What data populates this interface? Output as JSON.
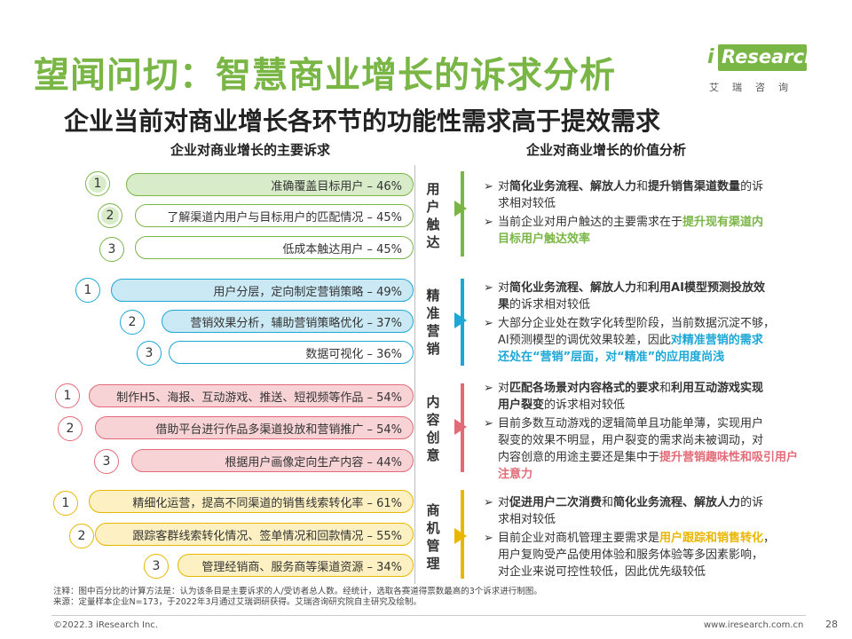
{
  "title": "望闻问切：智慧商业增长的诉求分析",
  "subtitle": "企业当前对商业增长各环节的功能性需求高于提效需求",
  "logo": {
    "text": "Research",
    "i": "i",
    "sub": "艾瑞咨询"
  },
  "left_header": "企业对商业增长的主要诉求",
  "right_header": "企业对商业增长的价值分析",
  "colors": {
    "green": "#7ab646",
    "blue": "#1ca7d6",
    "red": "#e26b77",
    "yellow": "#e9b600"
  },
  "groups": [
    {
      "category": "用户触达",
      "items": [
        {
          "num": "1",
          "label": "准确覆盖目标用户 – 46%"
        },
        {
          "num": "2",
          "label": "了解渠道内用户与目标用户的匹配情况 – 45%"
        },
        {
          "num": "3",
          "label": "低成本触达用户 – 45%"
        }
      ],
      "bullets": [
        {
          "marker": "➢",
          "line1": [
            "对",
            "简化业务流程、解放人力",
            "和",
            "提升销售渠道数量",
            "的诉"
          ],
          "cont": [
            "求相对较低"
          ]
        },
        {
          "marker": "➢",
          "line1": [
            "当前企业对用户触达的主要需求在于",
            "提升现有渠道内"
          ],
          "cont": [
            "目标用户触达效率"
          ]
        }
      ]
    },
    {
      "category": "精准营销",
      "items": [
        {
          "num": "1",
          "label": "用户分层，定向制定营销策略 – 49%"
        },
        {
          "num": "2",
          "label": "营销效果分析，辅助营销策略优化 – 37%"
        },
        {
          "num": "3",
          "label": "数据可视化 – 36%"
        }
      ],
      "bullets": [
        {
          "marker": "➢",
          "line1": [
            "对",
            "简化业务流程、解放人力",
            "和",
            "利用AI模型预测投放效"
          ],
          "cont": [
            "果",
            "的诉求相对较低"
          ]
        },
        {
          "marker": "➢",
          "line1": [
            "大部分企业处在数字化转型阶段，当前数据沉淀不够，"
          ],
          "cont": [
            "AI预测模型的调优效果较差，因此",
            "对精准营销的需求",
            "还处在“营销”层面，对“精准”的应用度尚浅"
          ]
        }
      ]
    },
    {
      "category": "内容创意",
      "items": [
        {
          "num": "1",
          "label": "制作H5、海报、互动游戏、推送、短视频等作品 – 54%"
        },
        {
          "num": "2",
          "label": "借助平台进行作品多渠道投放和营销推广 – 54%"
        },
        {
          "num": "3",
          "label": "根据用户画像定向生产内容 – 44%"
        }
      ],
      "bullets": [
        {
          "marker": "➢",
          "line1": [
            "对",
            "匹配各场景对内容格式的要求",
            "和",
            "利用互动游戏实现"
          ],
          "cont": [
            "用户裂变",
            "的诉求相对较低"
          ]
        },
        {
          "marker": "➢",
          "line1": [
            "目前多数互动游戏的逻辑简单且功能单薄，实现用户"
          ],
          "cont": [
            "裂变的效果不明显，用户裂变的需求尚未被调动，对",
            "内容创意的用途主要还是集中于",
            "提升营销趣味性和吸引用户注意力"
          ]
        }
      ]
    },
    {
      "category": "商机管理",
      "items": [
        {
          "num": "1",
          "label": "精细化运营，提高不同渠道的销售线索转化率 – 61%"
        },
        {
          "num": "2",
          "label": "跟踪客群线索转化情况、签单情况和回款情况 – 55%"
        },
        {
          "num": "3",
          "label": "管理经销商、服务商等渠道资源 – 34%"
        }
      ],
      "bullets": [
        {
          "marker": "➢",
          "line1": [
            "对",
            "促进用户二次消费",
            "和",
            "简化业务流程、解放人力",
            "的诉"
          ],
          "cont": [
            "求相对较低"
          ]
        },
        {
          "marker": "➢",
          "line1": [
            "目前企业对商机管理主要需求是",
            "用户跟踪和销售转化",
            "，"
          ],
          "cont": [
            "用户复购受产品使用体验和服务体验等多因素影响，",
            "对企业来说可控性较低，因此优先级较低"
          ]
        }
      ]
    }
  ],
  "note1": "注释：图中百分比的计算方法是：认为该条目是主要诉求的人/受访者总人数。经统计，选取各赛道得票数最高的3个诉求进行制图。",
  "note2": "来源：定量样本企业N=173，于2022年3月通过艾瑞调研获得。艾瑞咨询研究院自主研究及绘制。",
  "copyright": "©2022.3 iResearch Inc.",
  "site": "www.iresearch.com.cn",
  "page": "28"
}
